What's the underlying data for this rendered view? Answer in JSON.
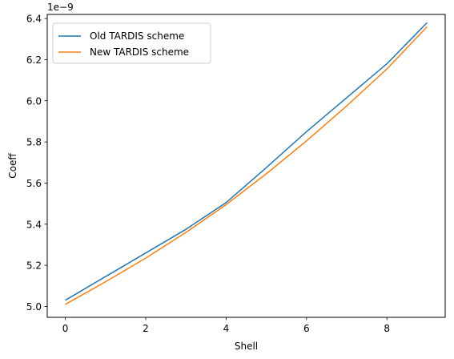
{
  "chart_data": {
    "type": "line",
    "title": "",
    "xlabel": "Shell",
    "ylabel": "Coeff",
    "offset_label": "1e−9",
    "x": [
      0,
      1,
      2,
      3,
      4,
      5,
      6,
      7,
      8,
      9
    ],
    "xlim": [
      -0.45,
      9.45
    ],
    "ylim": [
      4.947,
      6.42
    ],
    "x_ticks": [
      0,
      2,
      4,
      6,
      8
    ],
    "x_tick_labels": [
      "0",
      "2",
      "4",
      "6",
      "8"
    ],
    "y_ticks": [
      5.0,
      5.2,
      5.4,
      5.6,
      5.8,
      6.0,
      6.2,
      6.4
    ],
    "y_tick_labels": [
      "5.0",
      "5.2",
      "5.4",
      "5.6",
      "5.8",
      "6.0",
      "6.2",
      "6.4"
    ],
    "grid": false,
    "legend_position": "top-left",
    "series": [
      {
        "name": "Old TARDIS scheme",
        "color": "#1f77b4",
        "values": [
          5.03,
          5.145,
          5.26,
          5.375,
          5.505,
          5.675,
          5.85,
          6.015,
          6.18,
          6.38
        ]
      },
      {
        "name": "New TARDIS scheme",
        "color": "#ff7f0e",
        "values": [
          5.01,
          5.12,
          5.235,
          5.36,
          5.495,
          5.645,
          5.805,
          5.975,
          6.155,
          6.36
        ]
      }
    ]
  }
}
